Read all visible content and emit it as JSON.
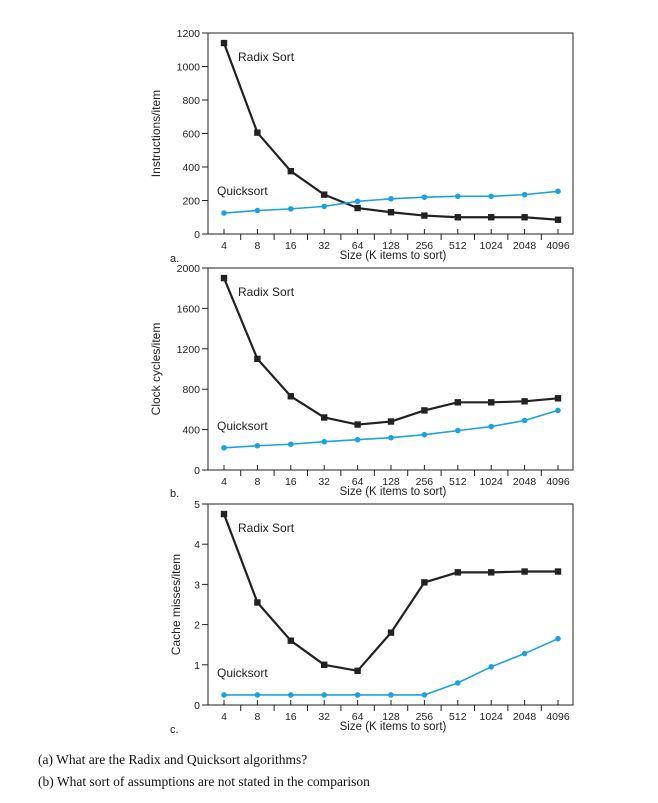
{
  "chart_data": [
    {
      "type": "line",
      "panel_label": "a.",
      "ylabel": "Instructions/item",
      "xlabel": "Size (K items to sort)",
      "categories": [
        "4",
        "8",
        "16",
        "32",
        "64",
        "128",
        "256",
        "512",
        "1024",
        "2048",
        "4096"
      ],
      "ylim": [
        0,
        1200
      ],
      "yticks": [
        0,
        200,
        400,
        600,
        800,
        1000,
        1200
      ],
      "series": [
        {
          "name": "Radix Sort",
          "color": "#222222",
          "marker": "square",
          "values": [
            1140,
            605,
            375,
            235,
            155,
            130,
            110,
            100,
            100,
            100,
            85
          ]
        },
        {
          "name": "Quicksort",
          "color": "#1ba3e0",
          "marker": "circle",
          "values": [
            125,
            140,
            150,
            165,
            195,
            210,
            220,
            225,
            225,
            235,
            255
          ]
        }
      ]
    },
    {
      "type": "line",
      "panel_label": "b.",
      "ylabel": "Clock cycles/item",
      "xlabel": "Size (K items to sort)",
      "categories": [
        "4",
        "8",
        "16",
        "32",
        "64",
        "128",
        "256",
        "512",
        "1024",
        "2048",
        "4096"
      ],
      "ylim": [
        0,
        2000
      ],
      "yticks": [
        0,
        400,
        800,
        1200,
        1600,
        2000
      ],
      "series": [
        {
          "name": "Radix Sort",
          "color": "#222222",
          "marker": "square",
          "values": [
            1900,
            1100,
            730,
            520,
            450,
            480,
            590,
            670,
            670,
            680,
            710
          ]
        },
        {
          "name": "Quicksort",
          "color": "#1ba3e0",
          "marker": "circle",
          "values": [
            220,
            240,
            255,
            280,
            300,
            320,
            350,
            390,
            430,
            490,
            590
          ]
        }
      ]
    },
    {
      "type": "line",
      "panel_label": "c.",
      "ylabel": "Cache misses/item",
      "xlabel": "Size (K items to sort)",
      "categories": [
        "4",
        "8",
        "16",
        "32",
        "64",
        "128",
        "256",
        "512",
        "1024",
        "2048",
        "4096"
      ],
      "ylim": [
        0,
        5
      ],
      "yticks": [
        0,
        1,
        2,
        3,
        4,
        5
      ],
      "series": [
        {
          "name": "Radix Sort",
          "color": "#222222",
          "marker": "square",
          "values": [
            4.75,
            2.55,
            1.6,
            1.0,
            0.85,
            1.8,
            3.05,
            3.3,
            3.3,
            3.32,
            3.32
          ]
        },
        {
          "name": "Quicksort",
          "color": "#1ba3e0",
          "marker": "circle",
          "values": [
            0.25,
            0.25,
            0.25,
            0.25,
            0.25,
            0.25,
            0.25,
            0.55,
            0.95,
            1.28,
            1.65
          ]
        }
      ]
    }
  ],
  "questions": [
    "(a) What are the Radix and Quicksort algorithms?",
    "(b) What sort of assumptions are not stated in the comparison"
  ]
}
